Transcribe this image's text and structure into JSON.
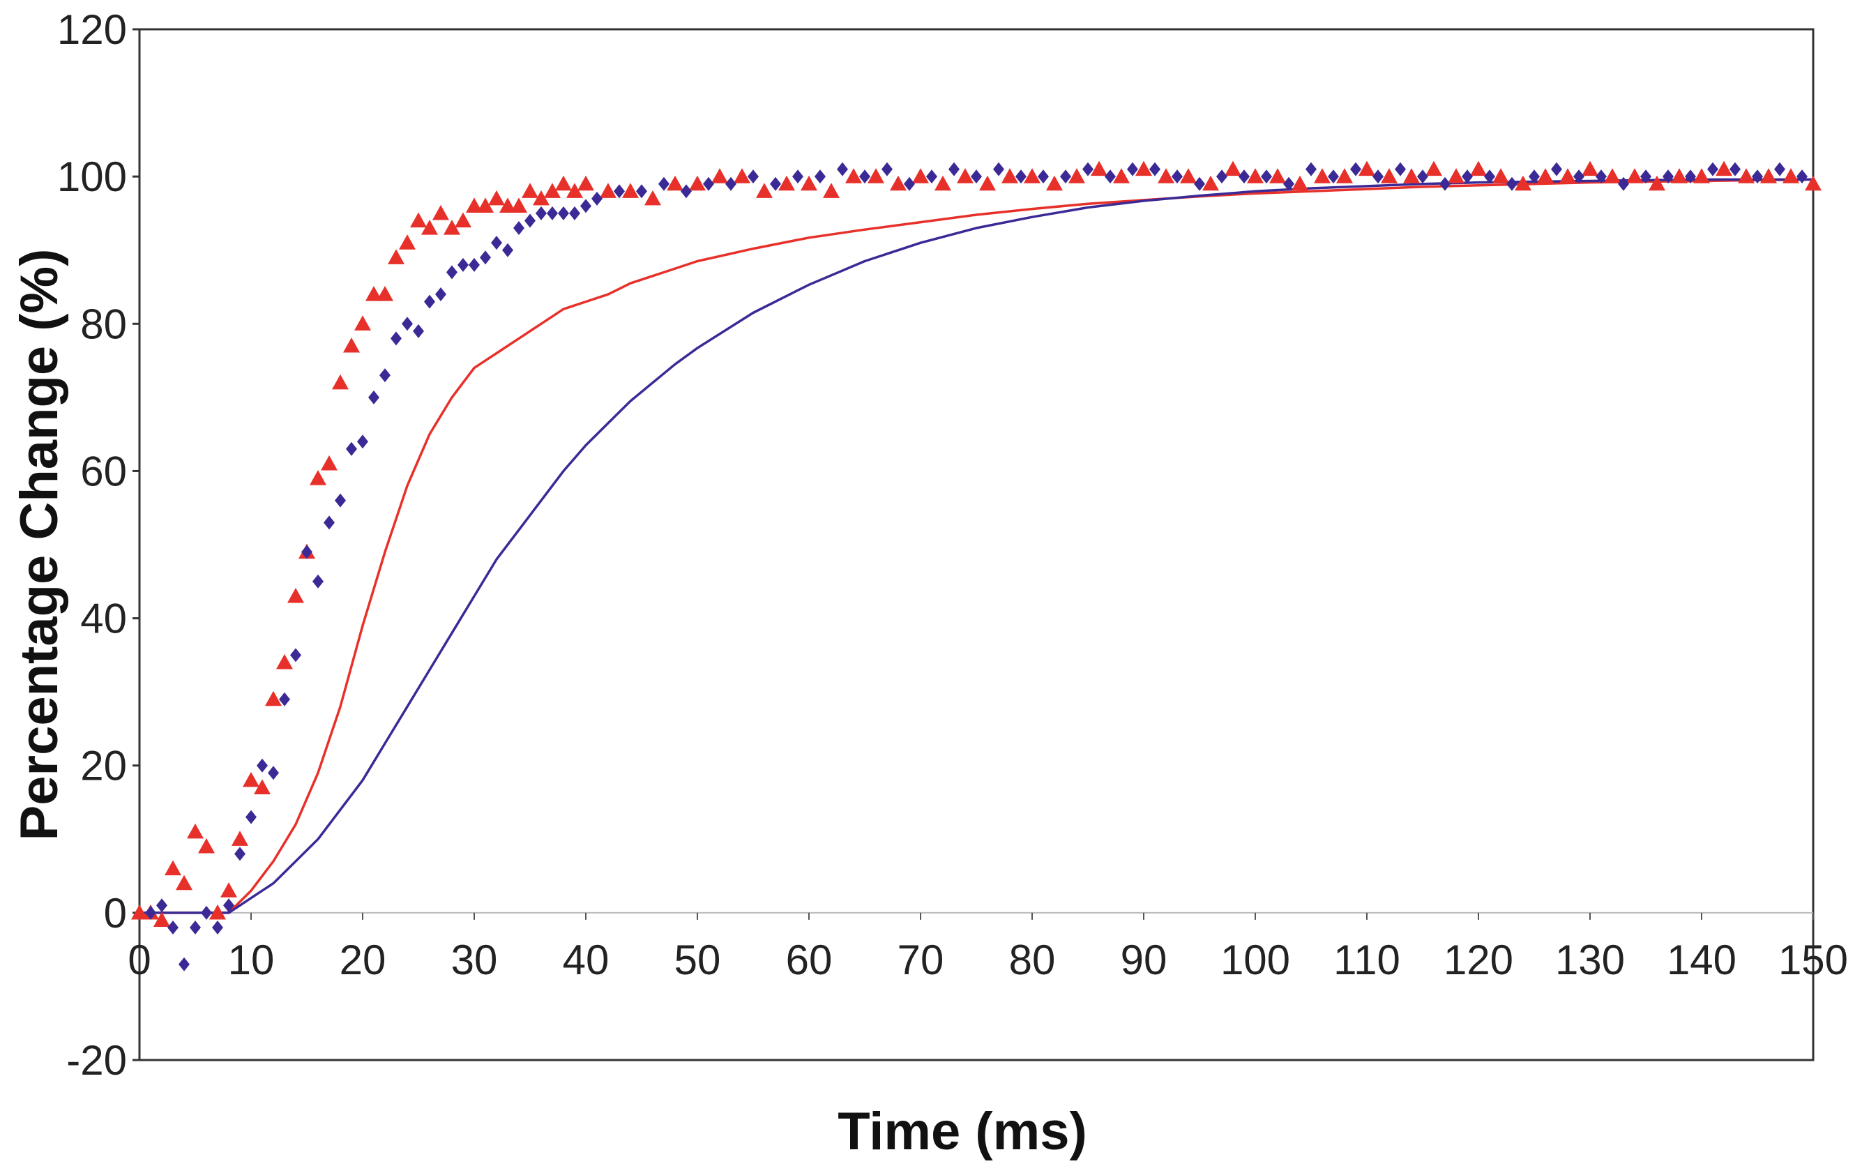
{
  "chart_data": {
    "type": "scatter",
    "title": "",
    "xlabel": "Time (ms)",
    "ylabel": "Percentage Change (%)",
    "xlim": [
      0,
      150
    ],
    "ylim": [
      -20,
      120
    ],
    "x_ticks": [
      0,
      10,
      20,
      30,
      40,
      50,
      60,
      70,
      80,
      90,
      100,
      110,
      120,
      130,
      140,
      150
    ],
    "y_ticks": [
      -20,
      0,
      20,
      40,
      60,
      80,
      100,
      120
    ],
    "x_tick_labels": [
      "0",
      "10",
      "20",
      "30",
      "40",
      "50",
      "60",
      "70",
      "80",
      "90",
      "100",
      "110",
      "120",
      "130",
      "140",
      "150"
    ],
    "y_tick_labels": [
      "-20",
      "0",
      "20",
      "40",
      "60",
      "80",
      "100",
      "120"
    ],
    "grid": false,
    "legend": "none",
    "colors": {
      "red": "#e8302a",
      "blue": "#3b2a96"
    },
    "series": [
      {
        "name": "red triangles (measured)",
        "kind": "scatter",
        "marker": "triangle",
        "color": "#e8302a",
        "x": [
          0,
          1,
          2,
          3,
          4,
          5,
          6,
          7,
          8,
          9,
          10,
          11,
          12,
          13,
          14,
          15,
          16,
          17,
          18,
          19,
          20,
          21,
          22,
          23,
          24,
          25,
          26,
          27,
          28,
          29,
          30,
          31,
          32,
          33,
          34,
          35,
          36,
          37,
          38,
          39,
          40,
          42,
          44,
          46,
          48,
          50,
          52,
          54,
          56,
          58,
          60,
          62,
          64,
          66,
          68,
          70,
          72,
          74,
          76,
          78,
          80,
          82,
          84,
          86,
          88,
          90,
          92,
          94,
          96,
          98,
          100,
          102,
          104,
          106,
          108,
          110,
          112,
          114,
          116,
          118,
          120,
          122,
          124,
          126,
          128,
          130,
          132,
          134,
          136,
          138,
          140,
          142,
          144,
          146,
          148,
          150
        ],
        "y": [
          0,
          0,
          -1,
          6,
          4,
          11,
          9,
          0,
          3,
          10,
          18,
          17,
          29,
          34,
          43,
          49,
          59,
          61,
          72,
          77,
          80,
          84,
          84,
          89,
          91,
          94,
          93,
          95,
          93,
          94,
          96,
          96,
          97,
          96,
          96,
          98,
          97,
          98,
          99,
          98,
          99,
          98,
          98,
          97,
          99,
          99,
          100,
          100,
          98,
          99,
          99,
          98,
          100,
          100,
          99,
          100,
          99,
          100,
          99,
          100,
          100,
          99,
          100,
          101,
          100,
          101,
          100,
          100,
          99,
          101,
          100,
          100,
          99,
          100,
          100,
          101,
          100,
          100,
          101,
          100,
          101,
          100,
          99,
          100,
          100,
          101,
          100,
          100,
          99,
          100,
          100,
          101,
          100,
          100,
          100,
          99
        ]
      },
      {
        "name": "blue diamonds (measured)",
        "kind": "scatter",
        "marker": "diamond",
        "color": "#3b2a96",
        "x": [
          1,
          2,
          3,
          4,
          5,
          6,
          7,
          8,
          9,
          10,
          11,
          12,
          13,
          14,
          15,
          16,
          17,
          18,
          19,
          20,
          21,
          22,
          23,
          24,
          25,
          26,
          27,
          28,
          29,
          30,
          31,
          32,
          33,
          34,
          35,
          36,
          37,
          38,
          39,
          40,
          41,
          43,
          45,
          47,
          49,
          51,
          53,
          55,
          57,
          59,
          61,
          63,
          65,
          67,
          69,
          71,
          73,
          75,
          77,
          79,
          81,
          83,
          85,
          87,
          89,
          91,
          93,
          95,
          97,
          99,
          101,
          103,
          105,
          107,
          109,
          111,
          113,
          115,
          117,
          119,
          121,
          123,
          125,
          127,
          129,
          131,
          133,
          135,
          137,
          139,
          141,
          143,
          145,
          147,
          149
        ],
        "y": [
          0,
          1,
          -2,
          -7,
          -2,
          0,
          -2,
          1,
          8,
          13,
          20,
          19,
          29,
          35,
          49,
          45,
          53,
          56,
          63,
          64,
          70,
          73,
          78,
          80,
          79,
          83,
          84,
          87,
          88,
          88,
          89,
          91,
          90,
          93,
          94,
          95,
          95,
          95,
          95,
          96,
          97,
          98,
          98,
          99,
          98,
          99,
          99,
          100,
          99,
          100,
          100,
          101,
          100,
          101,
          99,
          100,
          101,
          100,
          101,
          100,
          100,
          100,
          101,
          100,
          101,
          101,
          100,
          99,
          100,
          100,
          100,
          99,
          101,
          100,
          101,
          100,
          101,
          100,
          99,
          100,
          100,
          99,
          100,
          101,
          100,
          100,
          99,
          100,
          100,
          100,
          101,
          101,
          100,
          101,
          100
        ]
      },
      {
        "name": "red fitted curve",
        "kind": "line",
        "color": "#e8302a",
        "x": [
          0,
          6,
          8,
          10,
          12,
          14,
          16,
          18,
          20,
          22,
          24,
          26,
          28,
          30,
          32,
          34,
          36,
          38,
          40,
          42,
          44,
          46,
          48,
          50,
          55,
          60,
          65,
          70,
          75,
          80,
          85,
          90,
          95,
          100,
          105,
          110,
          115,
          120,
          125,
          130,
          135,
          140,
          145,
          150
        ],
        "y": [
          0,
          0,
          0,
          3,
          7,
          12,
          19,
          28,
          39,
          49,
          58,
          65,
          70,
          74,
          76,
          78,
          80,
          82,
          83,
          84,
          85.5,
          86.5,
          87.5,
          88.5,
          90.2,
          91.7,
          92.8,
          93.8,
          94.8,
          95.6,
          96.3,
          96.8,
          97.3,
          97.7,
          98,
          98.3,
          98.6,
          98.8,
          99,
          99.2,
          99.3,
          99.4,
          99.5,
          99.6
        ]
      },
      {
        "name": "blue fitted curve",
        "kind": "line",
        "color": "#3b2a96",
        "x": [
          0,
          8,
          10,
          12,
          14,
          16,
          18,
          20,
          22,
          24,
          26,
          28,
          30,
          32,
          34,
          36,
          38,
          40,
          42,
          44,
          46,
          48,
          50,
          55,
          60,
          65,
          70,
          75,
          80,
          85,
          90,
          95,
          100,
          105,
          110,
          115,
          120,
          125,
          130,
          135,
          140,
          145,
          150
        ],
        "y": [
          0,
          0,
          2,
          4,
          7,
          10,
          14,
          18,
          23,
          28,
          33,
          38,
          43,
          48,
          52,
          56,
          60,
          63.5,
          66.5,
          69.5,
          72,
          74.5,
          76.7,
          81.5,
          85.3,
          88.5,
          91,
          93,
          94.5,
          95.8,
          96.7,
          97.4,
          98,
          98.4,
          98.7,
          99,
          99.2,
          99.3,
          99.4,
          99.5,
          99.6,
          99.6,
          99.6
        ]
      }
    ]
  }
}
